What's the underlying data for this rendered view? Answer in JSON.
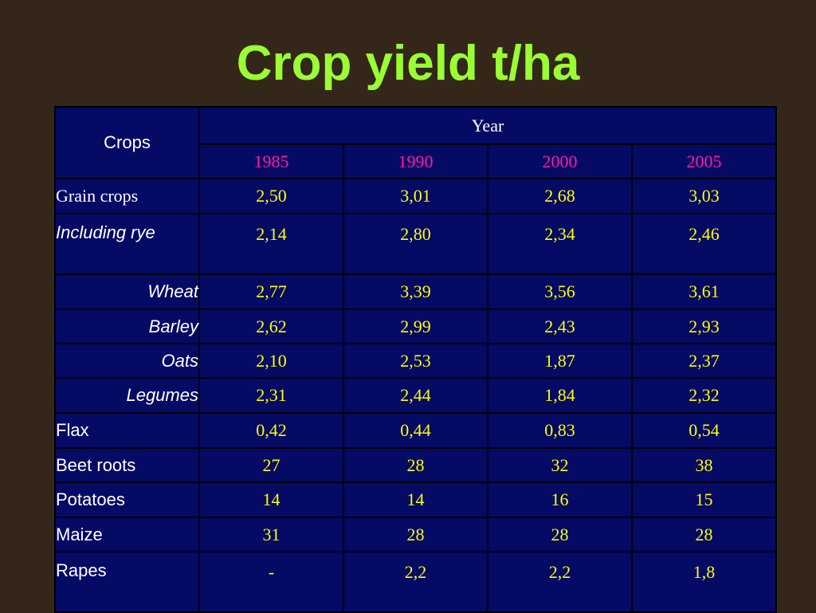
{
  "slide": {
    "title": "Crop yield t/ha"
  },
  "table": {
    "crops_header": "Crops",
    "year_header": "Year",
    "years": [
      "1985",
      "1990",
      "2000",
      "2005"
    ],
    "rows": [
      {
        "crop": "Grain crops",
        "values": [
          "2,50",
          "3,01",
          "2,68",
          "3,03"
        ]
      },
      {
        "crop": "Including rye",
        "values": [
          "2,14",
          "2,80",
          "2,34",
          "2,46"
        ]
      },
      {
        "crop": "Wheat",
        "values": [
          "2,77",
          "3,39",
          "3,56",
          "3,61"
        ]
      },
      {
        "crop": "Barley",
        "values": [
          "2,62",
          "2,99",
          "2,43",
          "2,93"
        ]
      },
      {
        "crop": "Oats",
        "values": [
          "2,10",
          "2,53",
          "1,87",
          "2,37"
        ]
      },
      {
        "crop": "Legumes",
        "values": [
          "2,31",
          "2,44",
          "1,84",
          "2,32"
        ]
      },
      {
        "crop": "Flax",
        "values": [
          "0,42",
          "0,44",
          "0,83",
          "0,54"
        ]
      },
      {
        "crop": "Beet roots",
        "values": [
          "27",
          "28",
          "32",
          "38"
        ]
      },
      {
        "crop": "Potatoes",
        "values": [
          "14",
          "14",
          "16",
          "15"
        ]
      },
      {
        "crop": "Maize",
        "values": [
          "31",
          "28",
          "28",
          "28"
        ]
      },
      {
        "crop": "Rapes",
        "values": [
          "-",
          "2,2",
          "2,2",
          "1,8"
        ]
      }
    ]
  },
  "colors": {
    "background": "#34271a",
    "title": "#99ff33",
    "table_fill": "#050a64",
    "year_text": "#ff1aa8",
    "value_text": "#ffff00",
    "label_text": "#ffffff"
  }
}
